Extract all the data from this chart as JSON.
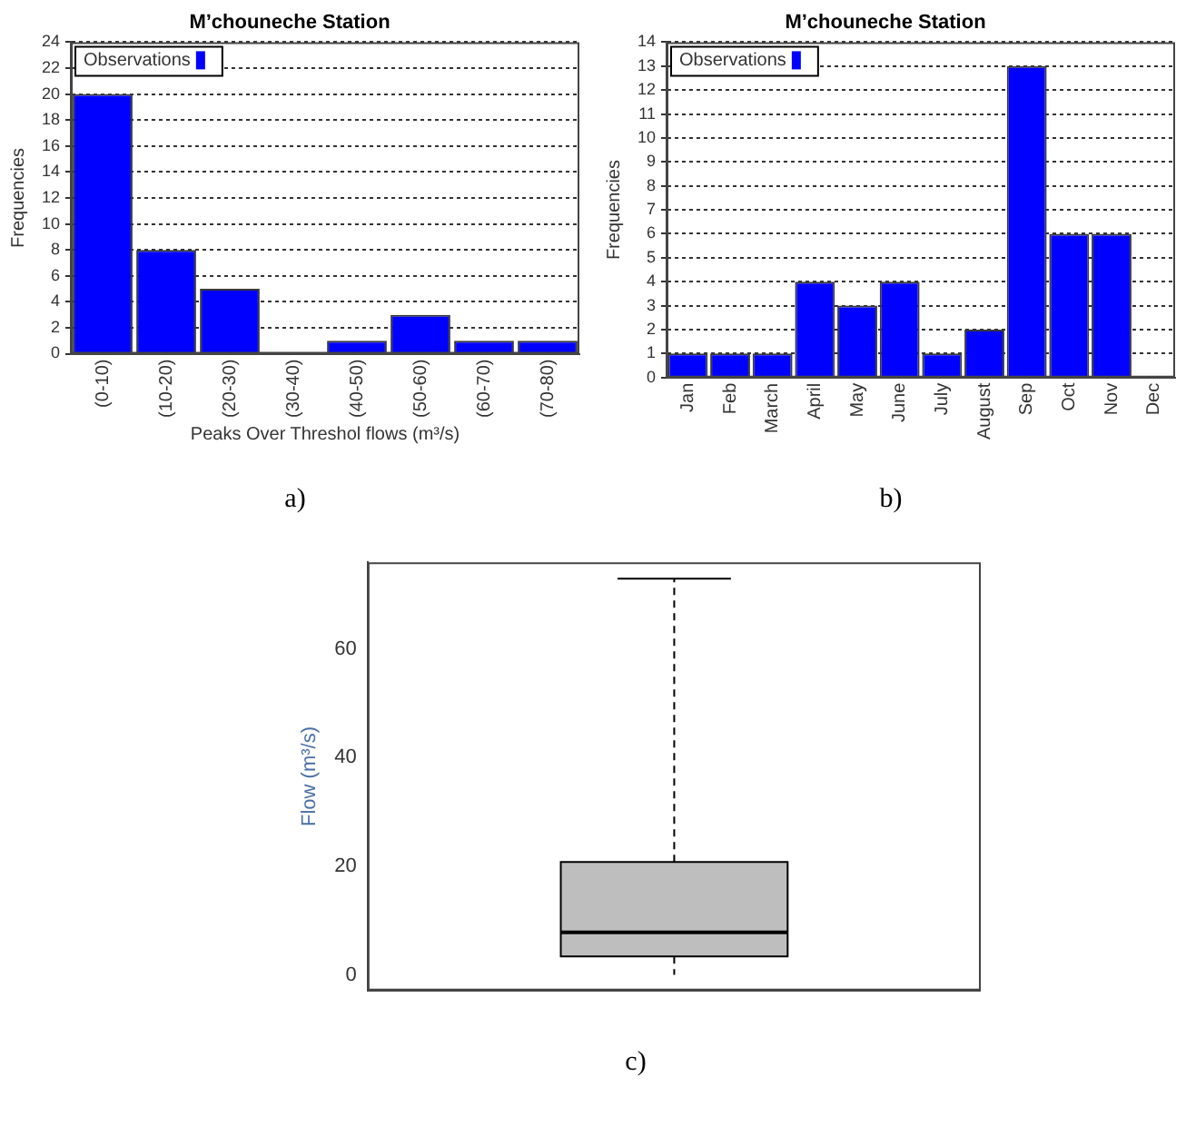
{
  "chart_data": [
    {
      "type": "bar",
      "title": "M’chouneche Station",
      "xlabel": "Peaks Over Threshol flows (m³/s)",
      "ylabel": "Frequencies",
      "categories": [
        "(0-10)",
        "(10-20)",
        "(20-30)",
        "(30-40)",
        "(40-50)",
        "(50-60)",
        "(60-70)",
        "(70-80)"
      ],
      "series": [
        {
          "name": "Observations",
          "color": "#0000ff",
          "values": [
            20,
            8,
            5,
            0,
            1,
            3,
            1,
            1
          ]
        }
      ],
      "ylim": [
        0,
        24
      ],
      "yticks": [
        0,
        2,
        4,
        6,
        8,
        10,
        12,
        14,
        16,
        18,
        20,
        22,
        24
      ],
      "grid": "y",
      "legend": "top left",
      "annotations": [
        "a)"
      ]
    },
    {
      "type": "bar",
      "title": "M’chouneche Station",
      "ylabel": "Frequencies",
      "categories": [
        "Jan",
        "Feb",
        "March",
        "April",
        "May",
        "June",
        "July",
        "August",
        "Sep",
        "Oct",
        "Nov",
        "Dec"
      ],
      "series": [
        {
          "name": "Observations",
          "color": "#0000ff",
          "values": [
            1,
            1,
            1,
            4,
            3,
            4,
            1,
            2,
            13,
            6,
            6,
            0
          ]
        }
      ],
      "ylim": [
        0,
        14
      ],
      "yticks": [
        0,
        1,
        2,
        3,
        4,
        5,
        6,
        7,
        8,
        9,
        10,
        11,
        12,
        13,
        14
      ],
      "grid": "y",
      "legend": "top left",
      "annotations": [
        "b)"
      ]
    },
    {
      "type": "box",
      "ylabel": "Flow (m³/s)",
      "categories": [
        null
      ],
      "color": "#bebebe",
      "boxes": [
        {
          "low": 0,
          "q1": 3.4,
          "median": 7.8,
          "q3": 20.8,
          "high": 73
        }
      ],
      "ylim": [
        -2.9,
        76
      ],
      "yticks": [
        0,
        20,
        40,
        60
      ],
      "tick_labels": "y",
      "annotations": [
        "c)"
      ]
    }
  ]
}
